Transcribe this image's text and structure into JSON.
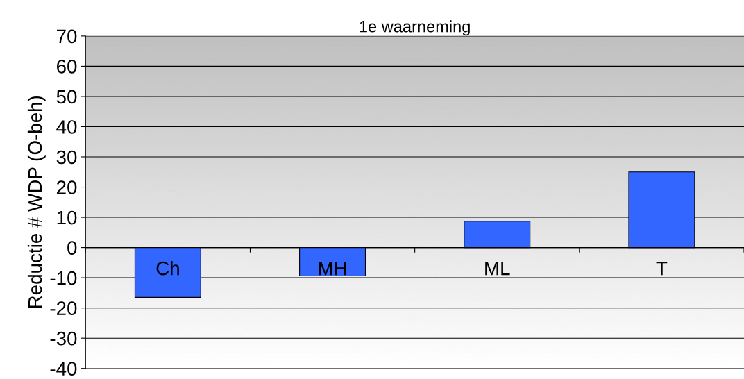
{
  "chart_data": {
    "type": "bar",
    "title": "1e waarneming",
    "ylabel": "Reductie # WDP (O-beh)",
    "categories": [
      "Ch",
      "MH",
      "ML",
      "T"
    ],
    "values": [
      -16.5,
      -9.4,
      8.7,
      25
    ],
    "color": "#3366ff",
    "ylim": [
      -40,
      70
    ],
    "yticks": [
      -40,
      -30,
      -20,
      -10,
      0,
      10,
      20,
      30,
      40,
      50,
      60,
      70
    ],
    "grid": "y",
    "legend": false
  }
}
